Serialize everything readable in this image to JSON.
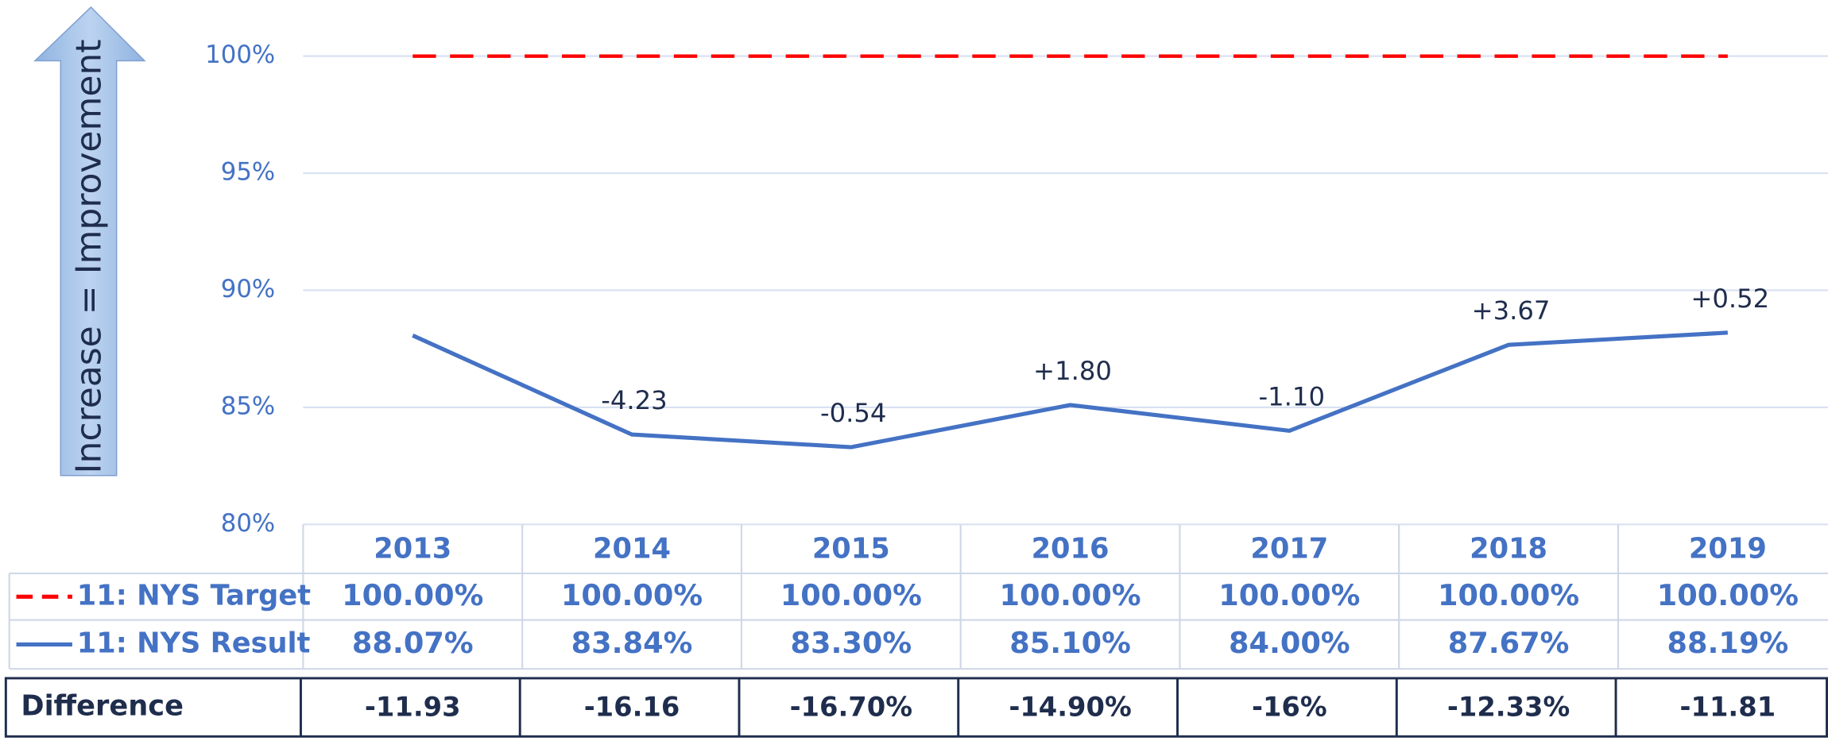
{
  "chart_data": {
    "type": "line",
    "axis_note": "Increase = Improvement",
    "categories": [
      "2013",
      "2014",
      "2015",
      "2016",
      "2017",
      "2018",
      "2019"
    ],
    "series": [
      {
        "name": "11: NYS Target",
        "color": "#ff0000",
        "dashed": true,
        "values": [
          100,
          100,
          100,
          100,
          100,
          100,
          100
        ],
        "value_labels": [
          "100.00%",
          "100.00%",
          "100.00%",
          "100.00%",
          "100.00%",
          "100.00%",
          "100.00%"
        ]
      },
      {
        "name": "11: NYS Result",
        "color": "#4472c4",
        "dashed": false,
        "values": [
          88.07,
          83.84,
          83.3,
          85.1,
          84.0,
          87.67,
          88.19
        ],
        "value_labels": [
          "88.07%",
          "83.84%",
          "83.30%",
          "85.10%",
          "84.00%",
          "87.67%",
          "88.19%"
        ]
      }
    ],
    "change_labels": [
      null,
      "-4.23",
      "-0.54",
      "+1.80",
      "-1.10",
      "+3.67",
      "+0.52"
    ],
    "ylim": [
      80,
      100
    ],
    "yticks": [
      {
        "value": 80,
        "label": "80%"
      },
      {
        "value": 85,
        "label": "85%"
      },
      {
        "value": 90,
        "label": "90%"
      },
      {
        "value": 95,
        "label": "95%"
      },
      {
        "value": 100,
        "label": "100%"
      }
    ],
    "grid": true,
    "difference_row": {
      "label": "Difference",
      "cells": [
        "-11.93",
        "-16.16",
        "-16.70%",
        "-14.90%",
        "-16%",
        "-12.33%",
        "-11.81"
      ]
    }
  }
}
